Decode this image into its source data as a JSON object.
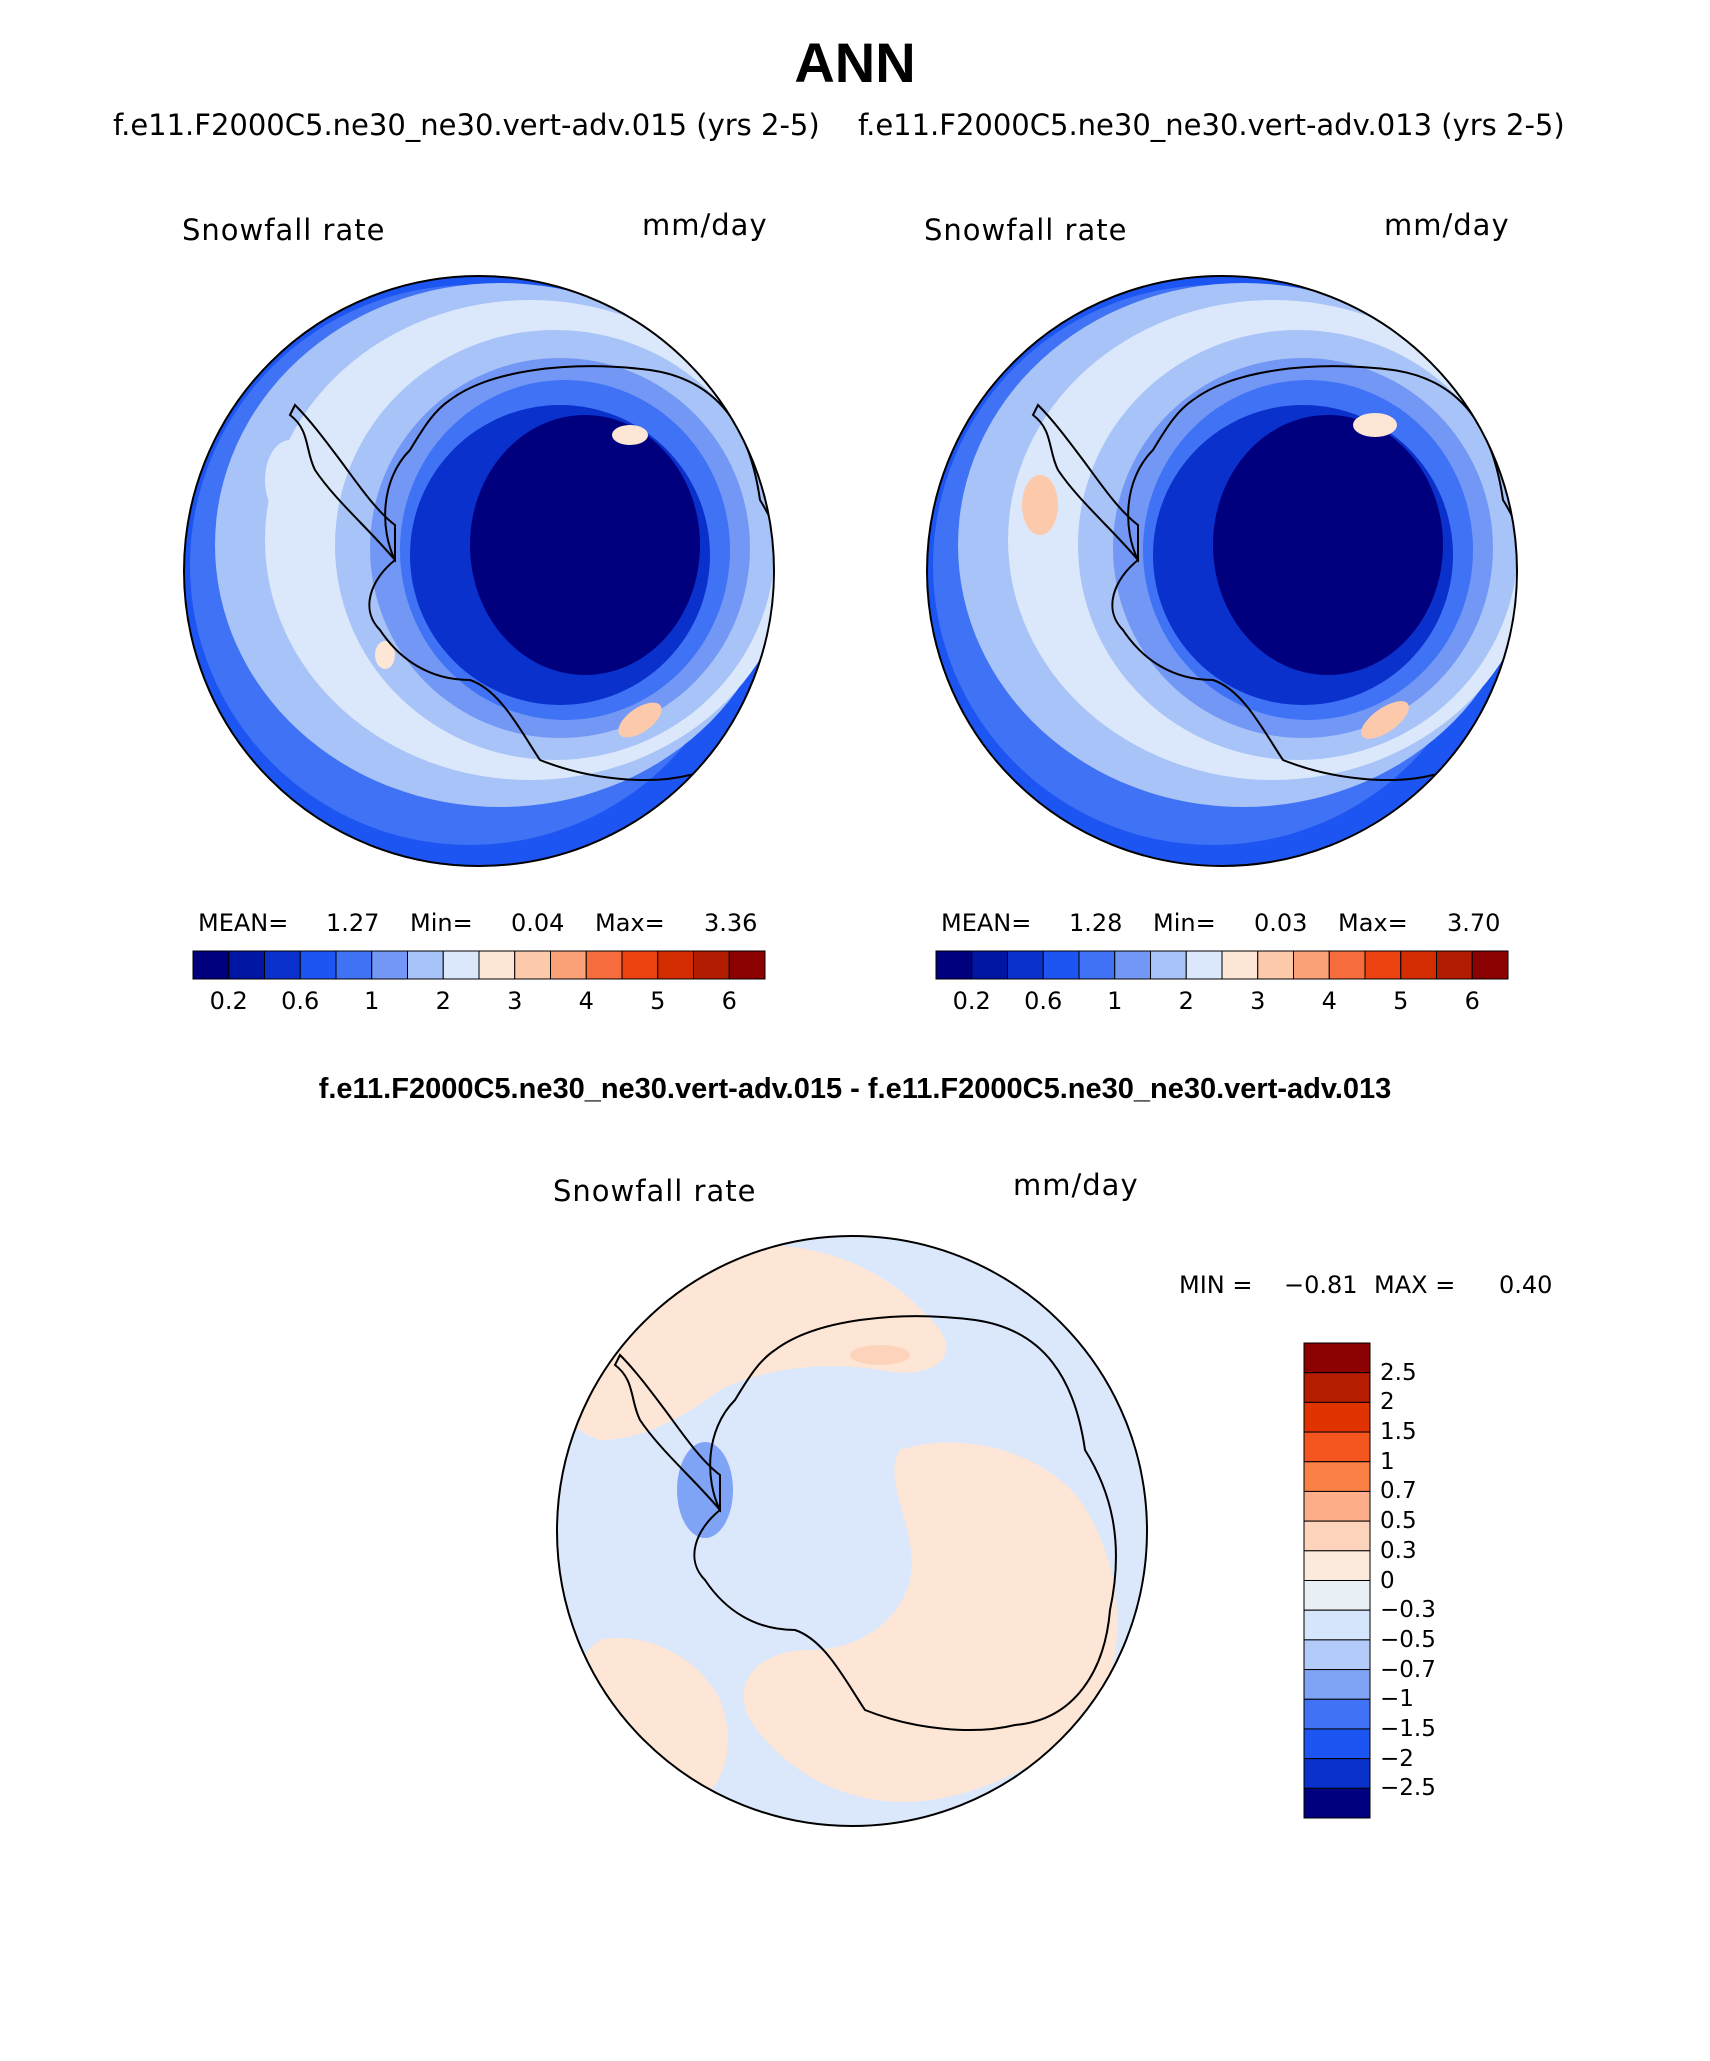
{
  "main_title": "ANN",
  "panels": [
    {
      "case_title": "f.e11.F2000C5.ne30_ne30.vert-adv.015 (yrs 2-5)",
      "variable": "Snowfall rate",
      "units": "mm/day",
      "mean_label": "MEAN=",
      "mean": "1.27",
      "min_label": "Min=",
      "min": "0.04",
      "max_label": "Max=",
      "max": "3.36"
    },
    {
      "case_title": "f.e11.F2000C5.ne30_ne30.vert-adv.013 (yrs 2-5)",
      "variable": "Snowfall rate",
      "units": "mm/day",
      "mean_label": "MEAN=",
      "mean": "1.28",
      "min_label": "Min=",
      "min": "0.03",
      "max_label": "Max=",
      "max": "3.70"
    }
  ],
  "abs_colorbar": {
    "tick_labels": [
      "0.2",
      "0.6",
      "1",
      "2",
      "3",
      "4",
      "5",
      "6"
    ],
    "colors": [
      "#00007f",
      "#0016a3",
      "#0a31cc",
      "#1d55f2",
      "#3f72f5",
      "#7397f5",
      "#a8c3f7",
      "#dbe8fb",
      "#fde6d6",
      "#fdc9ab",
      "#fba178",
      "#f66c3d",
      "#ec4111",
      "#d32c00",
      "#b21c00",
      "#8b0000"
    ]
  },
  "difference": {
    "title": "f.e11.F2000C5.ne30_ne30.vert-adv.015 - f.e11.F2000C5.ne30_ne30.vert-adv.013",
    "variable": "Snowfall rate",
    "units": "mm/day",
    "min_label": "MIN =",
    "min": "−0.81",
    "max_label": "MAX =",
    "max": "0.40"
  },
  "diff_colorbar": {
    "tick_labels": [
      "2.5",
      "2",
      "1.5",
      "1",
      "0.7",
      "0.5",
      "0.3",
      "0",
      "−0.3",
      "−0.5",
      "−0.7",
      "−1",
      "−1.5",
      "−2",
      "−2.5"
    ],
    "colors": [
      "#8b0000",
      "#b51c00",
      "#e03300",
      "#f5551f",
      "#fa8046",
      "#fcad8a",
      "#fdd3bb",
      "#fcebdc",
      "#e8f0f6",
      "#d5e5fb",
      "#b2cbf8",
      "#7fa4f6",
      "#3f72f5",
      "#1d55f2",
      "#0a31cc",
      "#00007f"
    ]
  },
  "map_colors": {
    "ocean_outer": "#1d55f2",
    "ocean_band": "#3f72f5",
    "ocean_mid": "#a8c3f7",
    "ocean_light": "#dbe8fb",
    "interior_1": "#7397f5",
    "interior_2": "#3f72f5",
    "interior_3": "#0a31cc",
    "interior_core": "#00007f",
    "warm_patch": "#fdc9ab",
    "diff_blue": "#dbe8fb",
    "diff_orange": "#fde6d6",
    "diff_blue_mid": "#7fa4f6"
  }
}
